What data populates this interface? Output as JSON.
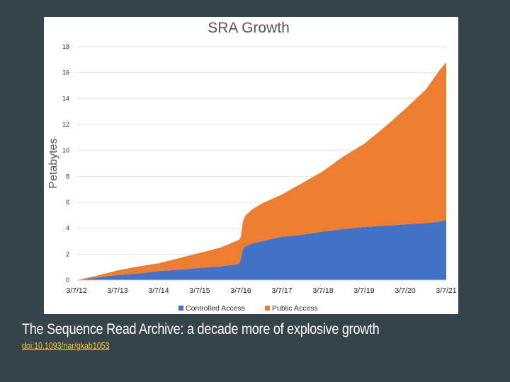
{
  "slide": {
    "caption": "The Sequence Read Archive: a decade more of explosive growth",
    "link_text": "doi:10.1093/nar/gkab1053"
  },
  "chart_data": {
    "type": "area",
    "stacked": true,
    "title": "SRA Growth",
    "ylabel": "Petabytes",
    "xlabel": "",
    "ylim": [
      0,
      18
    ],
    "yticks": [
      0,
      2,
      4,
      6,
      8,
      10,
      12,
      14,
      16,
      18
    ],
    "xlim": [
      "2012-03-07",
      "2021-03-07"
    ],
    "xtick_labels": [
      "3/7/12",
      "3/7/13",
      "3/7/14",
      "3/7/15",
      "3/7/16",
      "3/7/17",
      "3/7/18",
      "3/7/19",
      "3/7/20",
      "3/7/21"
    ],
    "grid": true,
    "legend_position": "bottom",
    "x": [
      "2012-03-07",
      "2012-09-07",
      "2013-03-07",
      "2013-09-07",
      "2014-03-07",
      "2014-09-07",
      "2015-03-07",
      "2015-09-07",
      "2016-01-07",
      "2016-02-20",
      "2016-03-07",
      "2016-03-25",
      "2016-04-15",
      "2016-06-07",
      "2016-09-07",
      "2017-03-07",
      "2017-09-07",
      "2018-03-07",
      "2018-09-07",
      "2019-03-07",
      "2019-09-07",
      "2020-03-07",
      "2020-09-07",
      "2021-01-07",
      "2021-03-07"
    ],
    "series": [
      {
        "name": "Controlled Access",
        "color": "#4472c4",
        "values": [
          0,
          0.2,
          0.4,
          0.5,
          0.7,
          0.8,
          0.95,
          1.05,
          1.2,
          1.25,
          1.6,
          2.4,
          2.6,
          2.8,
          3.0,
          3.35,
          3.5,
          3.75,
          3.95,
          4.1,
          4.2,
          4.3,
          4.4,
          4.5,
          4.65
        ]
      },
      {
        "name": "Public Access",
        "color": "#ed7d31",
        "values": [
          0,
          0.15,
          0.35,
          0.55,
          0.6,
          0.9,
          1.15,
          1.45,
          1.75,
          1.85,
          1.75,
          2.1,
          2.35,
          2.6,
          2.9,
          3.25,
          4.0,
          4.65,
          5.6,
          6.4,
          7.6,
          8.9,
          10.3,
          11.7,
          12.15
        ]
      }
    ]
  }
}
